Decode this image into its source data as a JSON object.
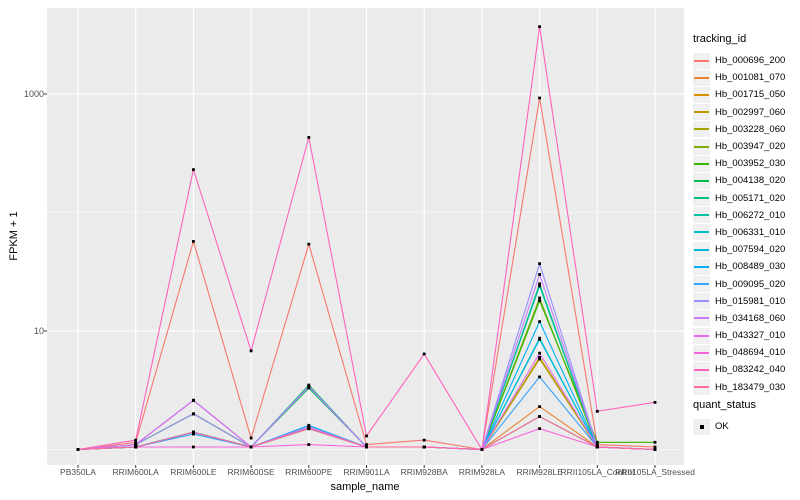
{
  "figure": {
    "background": "#ffffff",
    "panel_background": "#ebebeb",
    "grid_color": "#ffffff",
    "tick_text_color": "#4d4d4d",
    "tick_mark_color": "#333333",
    "point_color": "#000000"
  },
  "y_axis": {
    "label": "FPKM + 1",
    "tick_labels": [
      "1000",
      "10"
    ]
  },
  "x_axis": {
    "label": "sample_name"
  },
  "legend": {
    "title": "tracking_id",
    "entries": [
      {
        "label": "Hb_000696_200",
        "color": "#F8766D"
      },
      {
        "label": "Hb_001081_070",
        "color": "#EA8331"
      },
      {
        "label": "Hb_001715_050",
        "color": "#D89000"
      },
      {
        "label": "Hb_002997_060",
        "color": "#C09B00"
      },
      {
        "label": "Hb_003228_060",
        "color": "#A3A500"
      },
      {
        "label": "Hb_003947_020",
        "color": "#7CAE00"
      },
      {
        "label": "Hb_003952_030",
        "color": "#39B600"
      },
      {
        "label": "Hb_004138_020",
        "color": "#00BB4E"
      },
      {
        "label": "Hb_005171_020",
        "color": "#00BF7D"
      },
      {
        "label": "Hb_006272_010",
        "color": "#00C1A3"
      },
      {
        "label": "Hb_006331_010",
        "color": "#00BFC4"
      },
      {
        "label": "Hb_007594_020",
        "color": "#00BAE0"
      },
      {
        "label": "Hb_008489_030",
        "color": "#00B0F6"
      },
      {
        "label": "Hb_009095_020",
        "color": "#35A2FF"
      },
      {
        "label": "Hb_015981_010",
        "color": "#9590FF"
      },
      {
        "label": "Hb_034168_060",
        "color": "#C77CFF"
      },
      {
        "label": "Hb_043327_010",
        "color": "#E76BF3"
      },
      {
        "label": "Hb_048694_010",
        "color": "#FA62DB"
      },
      {
        "label": "Hb_083242_040",
        "color": "#FF62BC"
      },
      {
        "label": "Hb_183479_030",
        "color": "#FF6A98"
      }
    ]
  },
  "legend2": {
    "title": "quant_status",
    "entries": [
      {
        "label": "OK"
      }
    ]
  },
  "chart_data": {
    "type": "line",
    "title": "",
    "xlabel": "sample_name",
    "ylabel": "FPKM + 1",
    "yscale": "log10",
    "ylim": [
      0.93,
      4500
    ],
    "y_major_ticks": [
      10,
      1000
    ],
    "y_minor_gridlines": [
      1,
      100
    ],
    "grid": true,
    "legend_position": "right",
    "categories": [
      "PB350LA",
      "RRIM600LA",
      "RRIM600LE",
      "RRIM600SE",
      "RRIM600PE",
      "RRIM901LA",
      "RRIM928BA",
      "RRIM928LA",
      "RRIM928LE",
      "RRII105LA_Control",
      "RRII105LA_Stressed"
    ],
    "series": [
      {
        "name": "Hb_000696_200",
        "color": "#F8766D",
        "values": [
          1.0,
          1.15,
          57,
          1.25,
          54,
          1.1,
          1.2,
          1.0,
          925,
          1.1,
          1.05
        ]
      },
      {
        "name": "Hb_001081_070",
        "color": "#EA8331",
        "values": [
          1.0,
          1.05,
          1.4,
          1.05,
          1.5,
          1.05,
          1.05,
          1.0,
          2.3,
          1.05,
          1.0
        ]
      },
      {
        "name": "Hb_001715_050",
        "color": "#D89000",
        "values": [
          1.0,
          1.05,
          1.4,
          1.05,
          1.5,
          1.05,
          1.05,
          1.0,
          5.8,
          1.05,
          1.0
        ]
      },
      {
        "name": "Hb_002997_060",
        "color": "#C09B00",
        "values": [
          1.0,
          1.05,
          1.4,
          1.05,
          1.5,
          1.05,
          1.05,
          1.0,
          5.9,
          1.05,
          1.0
        ]
      },
      {
        "name": "Hb_003228_060",
        "color": "#A3A500",
        "values": [
          1.0,
          1.05,
          1.4,
          1.05,
          1.5,
          1.05,
          1.05,
          1.0,
          6.0,
          1.05,
          1.0
        ]
      },
      {
        "name": "Hb_003947_020",
        "color": "#7CAE00",
        "values": [
          1.0,
          1.1,
          2.0,
          1.05,
          3.4,
          1.05,
          1.05,
          1.0,
          19,
          1.05,
          1.0
        ]
      },
      {
        "name": "Hb_003952_030",
        "color": "#39B600",
        "values": [
          1.0,
          1.1,
          2.0,
          1.05,
          3.4,
          1.05,
          1.05,
          1.0,
          18,
          1.15,
          1.15
        ]
      },
      {
        "name": "Hb_004138_020",
        "color": "#00BB4E",
        "values": [
          1.0,
          1.05,
          1.4,
          1.05,
          3.3,
          1.05,
          1.05,
          1.0,
          1.9,
          1.05,
          1.0
        ]
      },
      {
        "name": "Hb_005171_020",
        "color": "#00BF7D",
        "values": [
          1.0,
          1.1,
          2.6,
          1.05,
          3.5,
          1.05,
          1.05,
          1.0,
          25,
          1.05,
          1.0
        ]
      },
      {
        "name": "Hb_006272_010",
        "color": "#00C1A3",
        "values": [
          1.0,
          1.1,
          2.6,
          1.05,
          3.4,
          1.05,
          1.05,
          1.0,
          24,
          1.05,
          1.0
        ]
      },
      {
        "name": "Hb_006331_010",
        "color": "#00BFC4",
        "values": [
          1.0,
          1.05,
          1.4,
          1.05,
          1.55,
          1.05,
          1.05,
          1.0,
          8.7,
          1.05,
          1.0
        ]
      },
      {
        "name": "Hb_007594_020",
        "color": "#00BAE0",
        "values": [
          1.0,
          1.05,
          1.4,
          1.05,
          1.55,
          1.05,
          1.05,
          1.0,
          8.5,
          1.05,
          1.0
        ]
      },
      {
        "name": "Hb_008489_030",
        "color": "#00B0F6",
        "values": [
          1.0,
          1.05,
          1.4,
          1.05,
          1.6,
          1.05,
          1.05,
          1.0,
          12,
          1.05,
          1.0
        ]
      },
      {
        "name": "Hb_009095_020",
        "color": "#35A2FF",
        "values": [
          1.0,
          1.05,
          1.35,
          1.05,
          1.5,
          1.05,
          1.05,
          1.0,
          4.1,
          1.05,
          1.0
        ]
      },
      {
        "name": "Hb_015981_010",
        "color": "#9590FF",
        "values": [
          1.0,
          1.1,
          2.0,
          1.05,
          3.4,
          1.05,
          1.05,
          1.0,
          37,
          1.05,
          1.0
        ]
      },
      {
        "name": "Hb_034168_060",
        "color": "#C77CFF",
        "values": [
          1.0,
          1.1,
          2.6,
          1.05,
          3.4,
          1.05,
          1.05,
          1.0,
          30,
          1.05,
          1.0
        ]
      },
      {
        "name": "Hb_043327_010",
        "color": "#E76BF3",
        "values": [
          1.0,
          1.1,
          2.6,
          1.05,
          1.55,
          1.05,
          1.05,
          1.0,
          6.5,
          1.05,
          1.0
        ]
      },
      {
        "name": "Hb_048694_010",
        "color": "#FA62DB",
        "values": [
          1.0,
          1.05,
          1.05,
          1.05,
          1.1,
          1.05,
          1.05,
          1.0,
          1.5,
          1.05,
          1.0
        ]
      },
      {
        "name": "Hb_083242_040",
        "color": "#FF62BC",
        "values": [
          1.0,
          1.2,
          230,
          6.8,
          430,
          1.3,
          6.4,
          1.0,
          3700,
          2.1,
          2.5
        ]
      },
      {
        "name": "Hb_183479_030",
        "color": "#FF6A98",
        "values": [
          1.0,
          1.05,
          1.4,
          1.05,
          1.5,
          1.05,
          1.05,
          1.0,
          1.9,
          1.05,
          1.0
        ]
      }
    ],
    "quant_status": {
      "title": "quant_status",
      "value": "OK",
      "marker": "black point at every data vertex"
    }
  }
}
